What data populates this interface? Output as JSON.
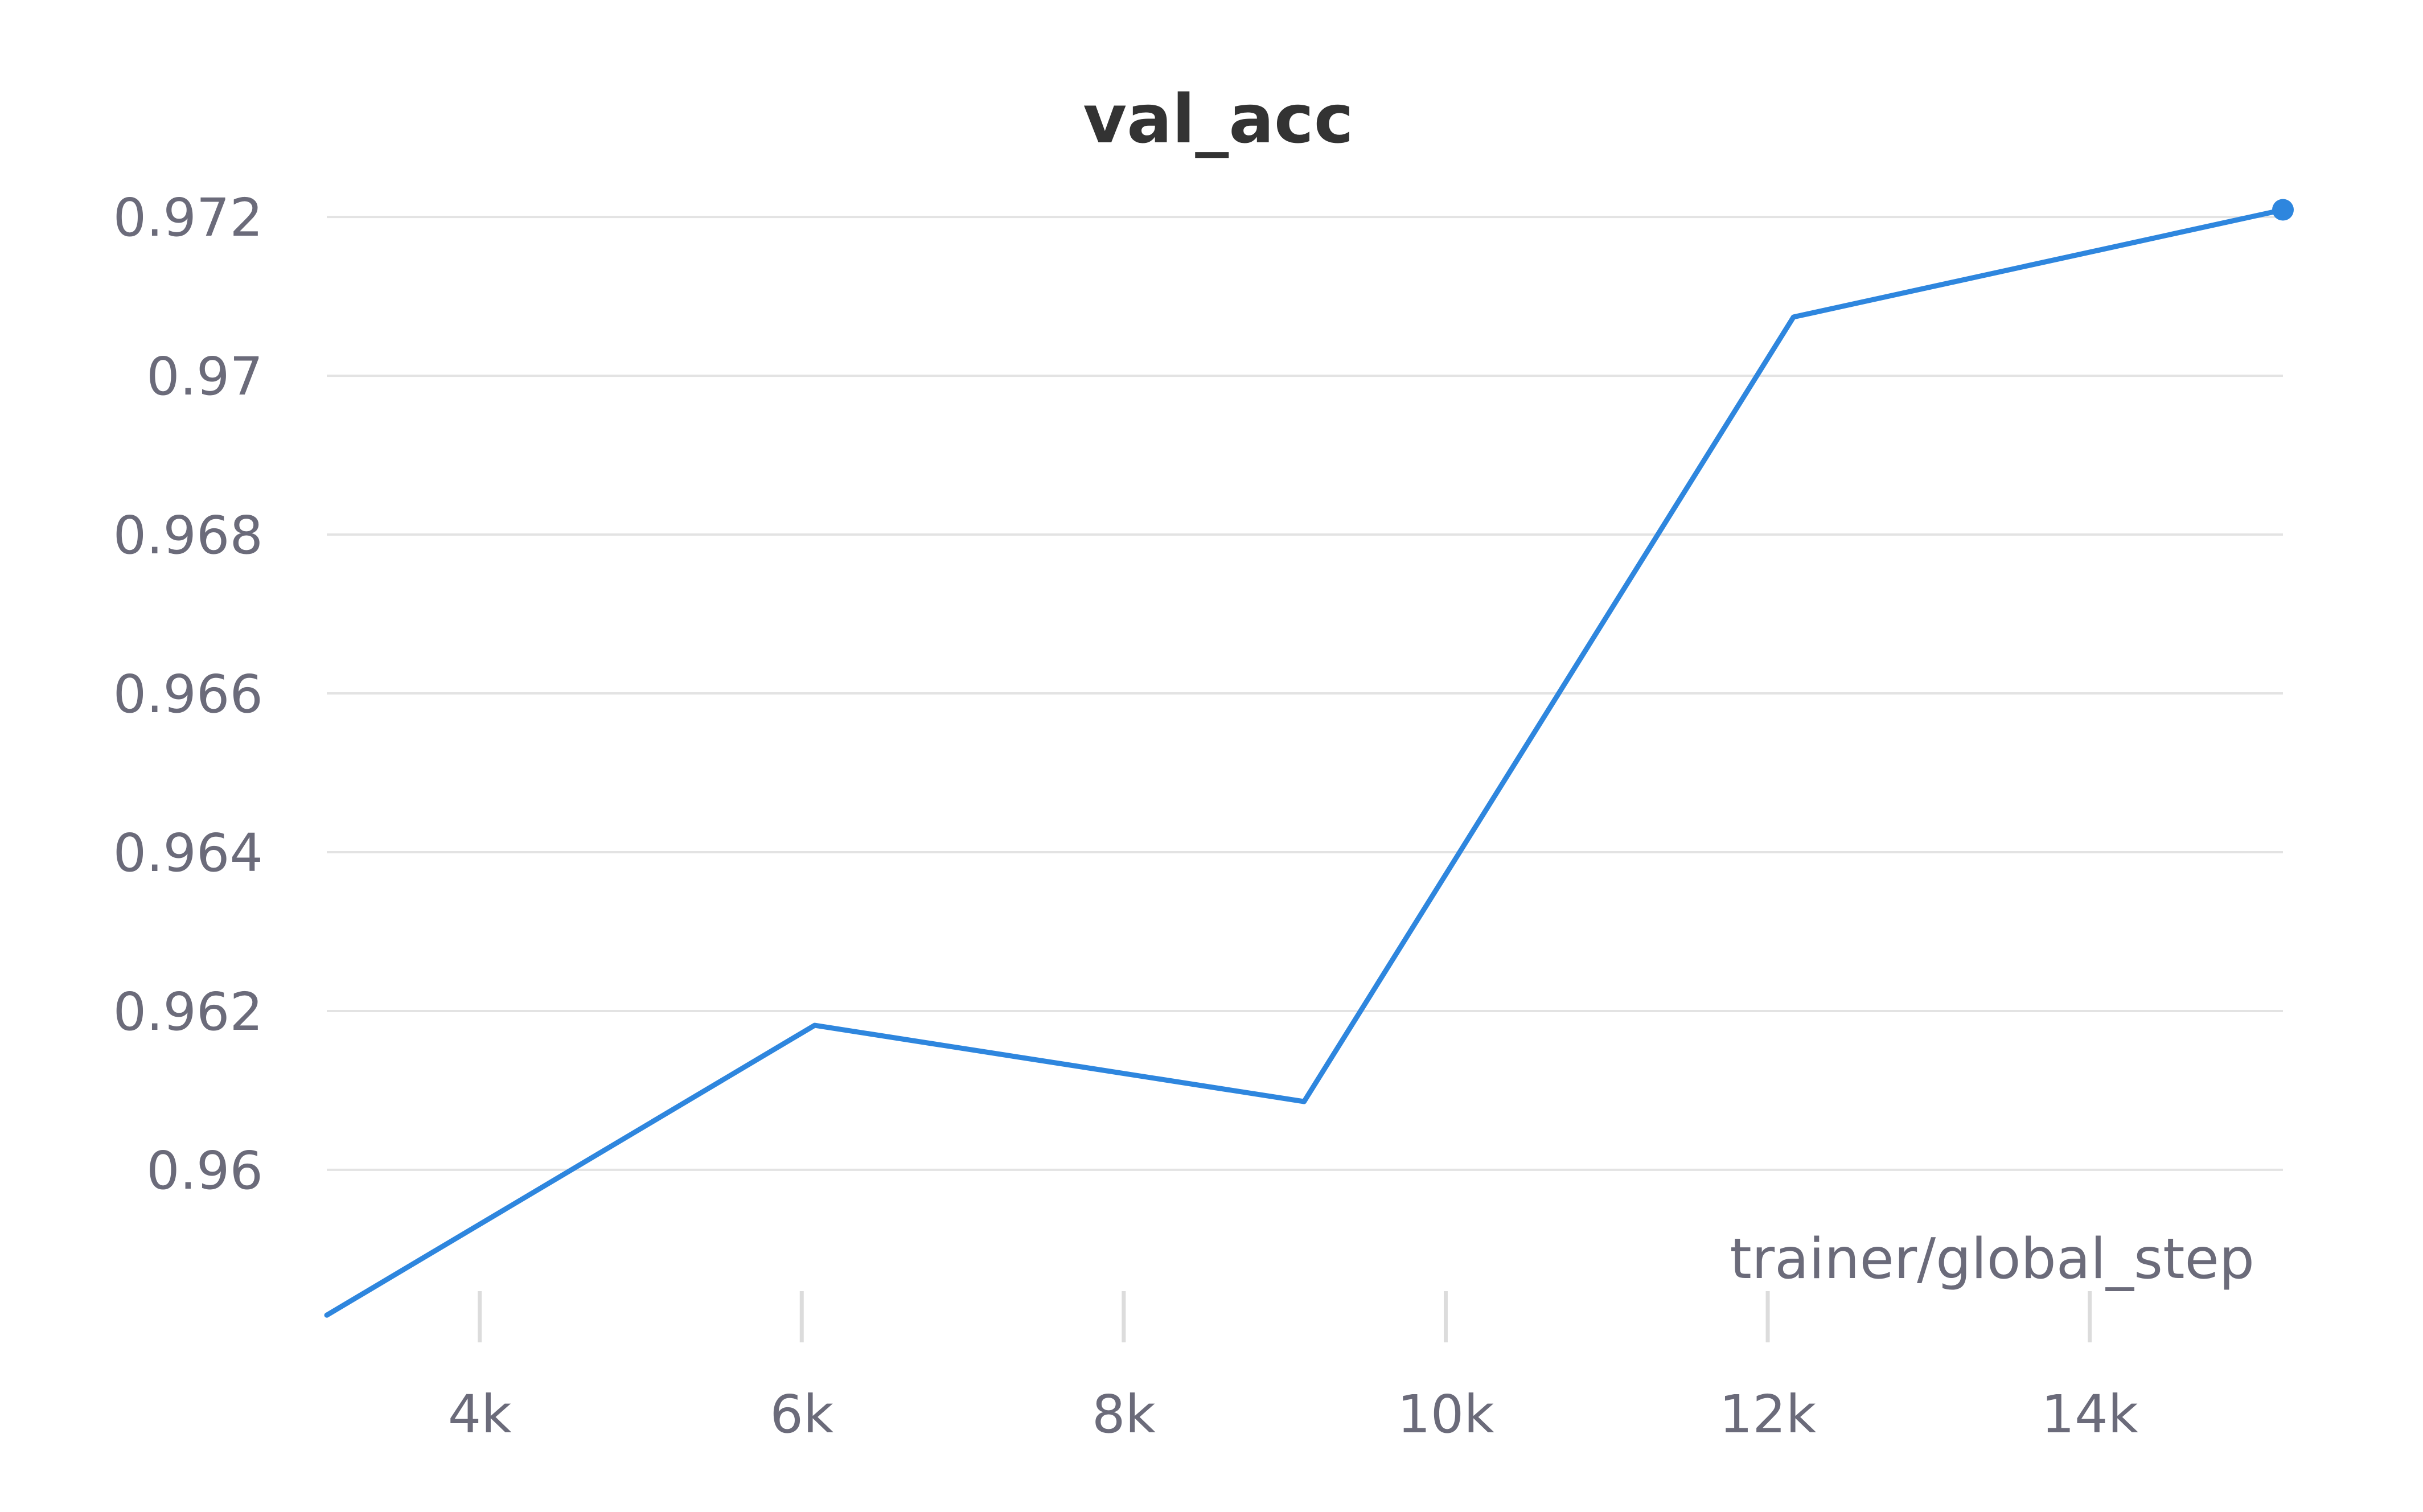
{
  "chart_data": {
    "type": "line",
    "title": "val_acc",
    "xlabel": "trainer/global_step",
    "ylabel": "",
    "xlim": [
      3050,
      15200
    ],
    "ylim": [
      0.9582,
      0.97218
    ],
    "x_ticks": [
      4000,
      6000,
      8000,
      10000,
      12000,
      14000
    ],
    "x_tick_labels": [
      "4k",
      "6k",
      "8k",
      "10k",
      "12k",
      "14k"
    ],
    "y_ticks": [
      0.96,
      0.962,
      0.964,
      0.966,
      0.968,
      0.97,
      0.972
    ],
    "y_tick_labels": [
      "0.96",
      "0.962",
      "0.964",
      "0.966",
      "0.968",
      "0.97",
      "0.972"
    ],
    "grid": true,
    "series": [
      {
        "color": "#2e86de",
        "x": [
          3050,
          6080,
          9120,
          12160,
          15200
        ],
        "y": [
          0.95817,
          0.96182,
          0.96086,
          0.97074,
          0.97209
        ]
      }
    ]
  }
}
